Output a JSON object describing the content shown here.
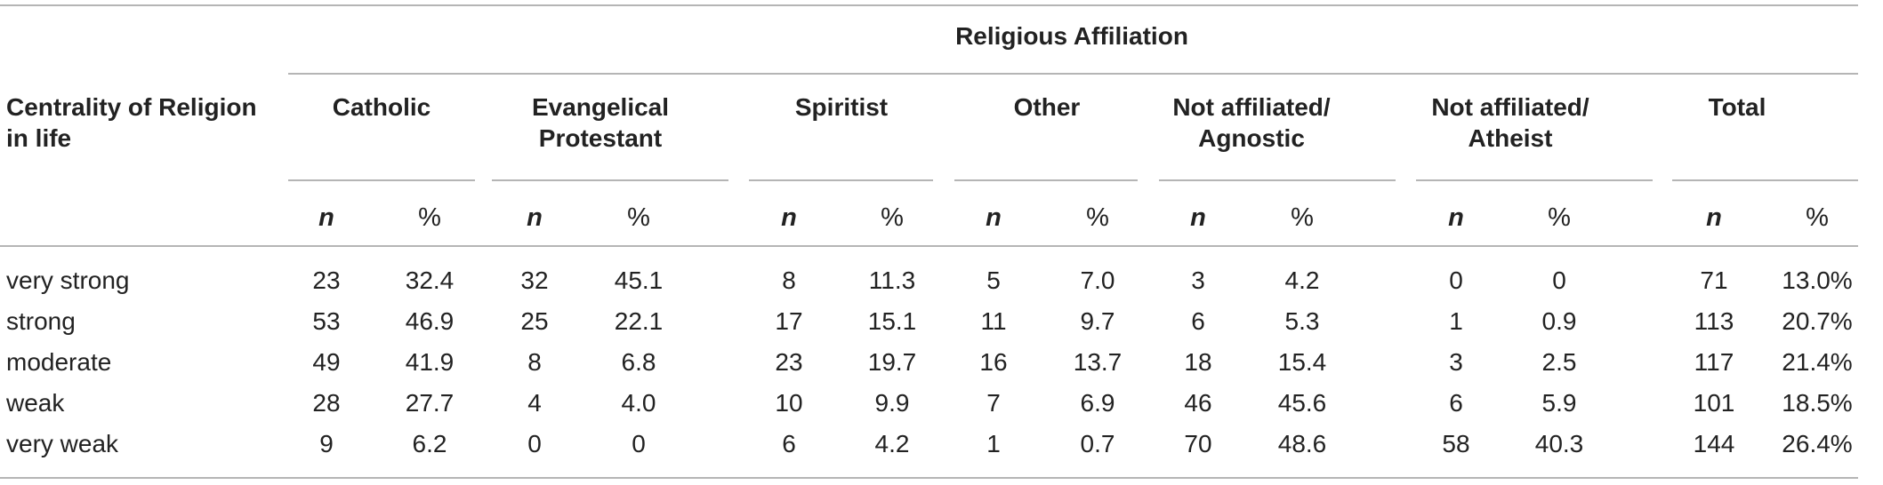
{
  "table": {
    "affiliation_heading": "Religious Affiliation",
    "row_header": "Centrality of Religion in life",
    "row_header_lines": [
      "Centrality of Religion",
      "in life"
    ],
    "groups": [
      {
        "label": "Catholic",
        "lines": [
          "Catholic"
        ]
      },
      {
        "label": "Evangelical Protestant",
        "lines": [
          "Evangelical",
          "Protestant"
        ]
      },
      {
        "label": "Spiritist",
        "lines": [
          "Spiritist"
        ]
      },
      {
        "label": "Other",
        "lines": [
          "Other"
        ]
      },
      {
        "label": "Not affiliated/ Agnostic",
        "lines": [
          "Not affiliated/",
          "Agnostic"
        ]
      },
      {
        "label": "Not affiliated/ Atheist",
        "lines": [
          "Not affiliated/",
          "Atheist"
        ]
      },
      {
        "label": "Total",
        "lines": [
          "Total"
        ]
      }
    ],
    "sub_headers": {
      "n": "n",
      "pct": "%"
    },
    "rows": [
      {
        "label": "very strong",
        "values": [
          "23",
          "32.4",
          "32",
          "45.1",
          "8",
          "11.3",
          "5",
          "7.0",
          "3",
          "4.2",
          "0",
          "0",
          "71",
          "13.0%"
        ]
      },
      {
        "label": "strong",
        "values": [
          "53",
          "46.9",
          "25",
          "22.1",
          "17",
          "15.1",
          "11",
          "9.7",
          "6",
          "5.3",
          "1",
          "0.9",
          "113",
          "20.7%"
        ]
      },
      {
        "label": "moderate",
        "values": [
          "49",
          "41.9",
          "8",
          "6.8",
          "23",
          "19.7",
          "16",
          "13.7",
          "18",
          "15.4",
          "3",
          "2.5",
          "117",
          "21.4%"
        ]
      },
      {
        "label": "weak",
        "values": [
          "28",
          "27.7",
          "4",
          "4.0",
          "10",
          "9.9",
          "7",
          "6.9",
          "46",
          "45.6",
          "6",
          "5.9",
          "101",
          "18.5%"
        ]
      },
      {
        "label": "very weak",
        "values": [
          "9",
          "6.2",
          "0",
          "0",
          "6",
          "4.2",
          "1",
          "0.7",
          "70",
          "48.6",
          "58",
          "40.3",
          "144",
          "26.4%"
        ]
      }
    ]
  }
}
